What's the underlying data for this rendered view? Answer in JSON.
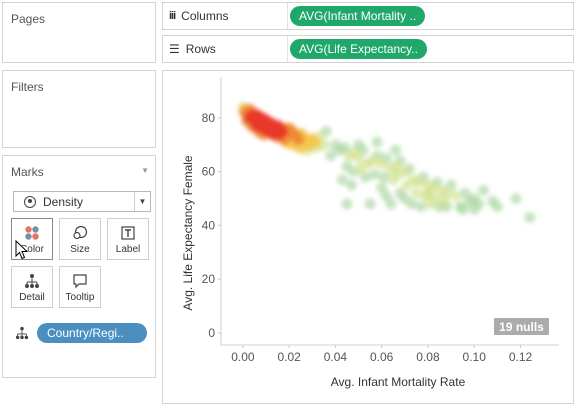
{
  "cards": {
    "pages_title": "Pages",
    "filters_title": "Filters",
    "marks_title": "Marks"
  },
  "shelves": {
    "columns_label": "Columns",
    "columns_pill": "AVG(Infant Mortality ..",
    "rows_label": "Rows",
    "rows_pill": "AVG(Life Expectancy.."
  },
  "marks": {
    "mark_type": "Density",
    "buttons": {
      "color": "Color",
      "size": "Size",
      "label": "Label",
      "detail": "Detail",
      "tooltip": "Tooltip"
    },
    "detail_field": "Country/Regi.."
  },
  "colors": {
    "pill_green": "#1fa86a",
    "pill_blue": "#4a8fbf",
    "density_low": "#a9d5a2",
    "density_high": "#e8392b"
  },
  "chart_data": {
    "type": "heatmap",
    "xlabel": "Avg. Infant Mortality Rate",
    "ylabel": "Avg. Life Expectancy Female",
    "x_ticks": [
      "0.00",
      "0.02",
      "0.04",
      "0.06",
      "0.08",
      "0.10",
      "0.12"
    ],
    "y_ticks": [
      "0",
      "20",
      "40",
      "60",
      "80"
    ],
    "xlim": [
      -0.006,
      0.128
    ],
    "ylim": [
      -3,
      93
    ],
    "nulls_badge": "19 nulls",
    "points": [
      [
        0.0,
        84
      ],
      [
        0.001,
        83
      ],
      [
        0.001,
        82
      ],
      [
        0.002,
        82
      ],
      [
        0.002,
        81
      ],
      [
        0.003,
        80
      ],
      [
        0.004,
        81
      ],
      [
        0.005,
        80
      ],
      [
        0.005,
        79
      ],
      [
        0.006,
        80
      ],
      [
        0.007,
        79
      ],
      [
        0.008,
        78
      ],
      [
        0.009,
        79
      ],
      [
        0.01,
        78
      ],
      [
        0.011,
        77
      ],
      [
        0.012,
        78
      ],
      [
        0.013,
        77
      ],
      [
        0.014,
        76
      ],
      [
        0.015,
        77
      ],
      [
        0.016,
        76
      ],
      [
        0.017,
        75
      ],
      [
        0.018,
        76
      ],
      [
        0.019,
        75
      ],
      [
        0.02,
        76
      ],
      [
        0.003,
        83
      ],
      [
        0.004,
        82
      ],
      [
        0.006,
        81
      ],
      [
        0.008,
        80
      ],
      [
        0.01,
        79
      ],
      [
        0.012,
        76
      ],
      [
        0.014,
        75
      ],
      [
        0.016,
        74
      ],
      [
        0.002,
        79
      ],
      [
        0.006,
        77
      ],
      [
        0.009,
        76
      ],
      [
        0.011,
        75
      ],
      [
        0.021,
        75
      ],
      [
        0.022,
        74
      ],
      [
        0.023,
        73
      ],
      [
        0.024,
        72
      ],
      [
        0.025,
        74
      ],
      [
        0.026,
        73
      ],
      [
        0.027,
        72
      ],
      [
        0.028,
        71
      ],
      [
        0.029,
        70
      ],
      [
        0.03,
        72
      ],
      [
        0.031,
        71
      ],
      [
        0.033,
        73
      ],
      [
        0.032,
        69
      ],
      [
        0.035,
        70
      ],
      [
        0.022,
        70
      ],
      [
        0.025,
        69
      ],
      [
        0.028,
        68
      ],
      [
        0.019,
        71
      ],
      [
        0.018,
        72
      ],
      [
        0.015,
        73
      ],
      [
        0.013,
        74
      ],
      [
        0.009,
        74
      ],
      [
        0.007,
        75
      ],
      [
        0.004,
        77
      ],
      [
        0.04,
        70
      ],
      [
        0.042,
        68
      ],
      [
        0.044,
        69
      ],
      [
        0.046,
        66
      ],
      [
        0.048,
        67
      ],
      [
        0.05,
        65
      ],
      [
        0.052,
        68
      ],
      [
        0.054,
        63
      ],
      [
        0.056,
        64
      ],
      [
        0.058,
        66
      ],
      [
        0.06,
        63
      ],
      [
        0.062,
        65
      ],
      [
        0.064,
        61
      ],
      [
        0.066,
        62
      ],
      [
        0.068,
        64
      ],
      [
        0.07,
        60
      ],
      [
        0.072,
        61
      ],
      [
        0.074,
        57
      ],
      [
        0.076,
        56
      ],
      [
        0.078,
        58
      ],
      [
        0.08,
        55
      ],
      [
        0.082,
        54
      ],
      [
        0.084,
        56
      ],
      [
        0.086,
        53
      ],
      [
        0.088,
        52
      ],
      [
        0.09,
        55
      ],
      [
        0.045,
        62
      ],
      [
        0.048,
        60
      ],
      [
        0.051,
        61
      ],
      [
        0.053,
        58
      ],
      [
        0.057,
        59
      ],
      [
        0.061,
        58
      ],
      [
        0.065,
        57
      ],
      [
        0.067,
        59
      ],
      [
        0.071,
        55
      ],
      [
        0.075,
        52
      ],
      [
        0.079,
        51
      ],
      [
        0.083,
        50
      ],
      [
        0.087,
        49
      ],
      [
        0.092,
        51
      ],
      [
        0.094,
        47
      ],
      [
        0.096,
        52
      ],
      [
        0.098,
        49
      ],
      [
        0.1,
        50
      ],
      [
        0.102,
        48
      ],
      [
        0.104,
        53
      ],
      [
        0.108,
        49
      ],
      [
        0.11,
        47
      ],
      [
        0.118,
        50
      ],
      [
        0.124,
        43
      ],
      [
        0.043,
        57
      ],
      [
        0.047,
        55
      ],
      [
        0.055,
        48
      ],
      [
        0.045,
        48
      ],
      [
        0.06,
        54
      ],
      [
        0.062,
        51
      ],
      [
        0.064,
        48
      ],
      [
        0.068,
        52
      ],
      [
        0.07,
        50
      ],
      [
        0.073,
        48
      ],
      [
        0.077,
        47
      ],
      [
        0.081,
        48
      ],
      [
        0.085,
        47
      ],
      [
        0.036,
        75
      ],
      [
        0.038,
        66
      ],
      [
        0.05,
        70
      ],
      [
        0.058,
        71
      ],
      [
        0.066,
        68
      ],
      [
        0.08,
        52
      ],
      [
        0.088,
        47
      ],
      [
        0.095,
        46
      ],
      [
        0.1,
        46
      ]
    ]
  }
}
